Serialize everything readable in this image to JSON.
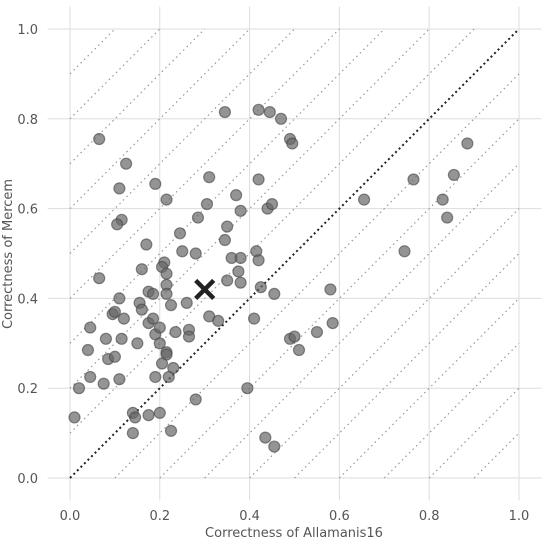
{
  "chart_data": {
    "type": "scatter",
    "xlabel": "Correctness of Allamanis16",
    "ylabel": "Correctness of Mercem",
    "xlim": [
      -0.05,
      1.05
    ],
    "ylim": [
      -0.05,
      1.05
    ],
    "xticks": [
      "0.0",
      "0.2",
      "0.4",
      "0.6",
      "0.8",
      "1.0"
    ],
    "yticks": [
      "0.0",
      "0.2",
      "0.4",
      "0.6",
      "0.8",
      "1.0"
    ],
    "grid": true,
    "diagonal_guides": true,
    "identity_line": true,
    "mean_marker": {
      "x": 0.3,
      "y": 0.42
    },
    "points": [
      [
        0.065,
        0.755
      ],
      [
        0.125,
        0.7
      ],
      [
        0.11,
        0.645
      ],
      [
        0.115,
        0.575
      ],
      [
        0.105,
        0.565
      ],
      [
        0.065,
        0.445
      ],
      [
        0.11,
        0.4
      ],
      [
        0.095,
        0.365
      ],
      [
        0.1,
        0.37
      ],
      [
        0.045,
        0.335
      ],
      [
        0.12,
        0.355
      ],
      [
        0.08,
        0.31
      ],
      [
        0.115,
        0.31
      ],
      [
        0.04,
        0.285
      ],
      [
        0.085,
        0.265
      ],
      [
        0.1,
        0.27
      ],
      [
        0.045,
        0.225
      ],
      [
        0.075,
        0.21
      ],
      [
        0.11,
        0.22
      ],
      [
        0.02,
        0.2
      ],
      [
        0.01,
        0.135
      ],
      [
        0.14,
        0.145
      ],
      [
        0.145,
        0.135
      ],
      [
        0.14,
        0.1
      ],
      [
        0.175,
        0.14
      ],
      [
        0.2,
        0.145
      ],
      [
        0.225,
        0.105
      ],
      [
        0.19,
        0.655
      ],
      [
        0.215,
        0.62
      ],
      [
        0.17,
        0.52
      ],
      [
        0.21,
        0.48
      ],
      [
        0.205,
        0.47
      ],
      [
        0.16,
        0.465
      ],
      [
        0.215,
        0.455
      ],
      [
        0.175,
        0.415
      ],
      [
        0.185,
        0.41
      ],
      [
        0.155,
        0.39
      ],
      [
        0.16,
        0.375
      ],
      [
        0.175,
        0.345
      ],
      [
        0.185,
        0.355
      ],
      [
        0.19,
        0.32
      ],
      [
        0.2,
        0.335
      ],
      [
        0.215,
        0.43
      ],
      [
        0.215,
        0.41
      ],
      [
        0.225,
        0.385
      ],
      [
        0.235,
        0.325
      ],
      [
        0.2,
        0.3
      ],
      [
        0.215,
        0.28
      ],
      [
        0.215,
        0.275
      ],
      [
        0.15,
        0.3
      ],
      [
        0.205,
        0.255
      ],
      [
        0.23,
        0.245
      ],
      [
        0.22,
        0.225
      ],
      [
        0.19,
        0.225
      ],
      [
        0.265,
        0.33
      ],
      [
        0.265,
        0.315
      ],
      [
        0.26,
        0.39
      ],
      [
        0.28,
        0.5
      ],
      [
        0.25,
        0.505
      ],
      [
        0.245,
        0.545
      ],
      [
        0.285,
        0.58
      ],
      [
        0.31,
        0.67
      ],
      [
        0.305,
        0.61
      ],
      [
        0.33,
        0.35
      ],
      [
        0.31,
        0.36
      ],
      [
        0.28,
        0.175
      ],
      [
        0.345,
        0.815
      ],
      [
        0.35,
        0.56
      ],
      [
        0.345,
        0.53
      ],
      [
        0.37,
        0.63
      ],
      [
        0.38,
        0.595
      ],
      [
        0.36,
        0.49
      ],
      [
        0.38,
        0.49
      ],
      [
        0.375,
        0.46
      ],
      [
        0.38,
        0.435
      ],
      [
        0.35,
        0.44
      ],
      [
        0.395,
        0.2
      ],
      [
        0.42,
        0.82
      ],
      [
        0.445,
        0.815
      ],
      [
        0.47,
        0.8
      ],
      [
        0.42,
        0.665
      ],
      [
        0.44,
        0.6
      ],
      [
        0.45,
        0.61
      ],
      [
        0.415,
        0.505
      ],
      [
        0.42,
        0.485
      ],
      [
        0.425,
        0.425
      ],
      [
        0.455,
        0.41
      ],
      [
        0.41,
        0.355
      ],
      [
        0.435,
        0.09
      ],
      [
        0.455,
        0.07
      ],
      [
        0.49,
        0.755
      ],
      [
        0.495,
        0.745
      ],
      [
        0.49,
        0.31
      ],
      [
        0.5,
        0.315
      ],
      [
        0.51,
        0.285
      ],
      [
        0.55,
        0.325
      ],
      [
        0.58,
        0.42
      ],
      [
        0.585,
        0.345
      ],
      [
        0.655,
        0.62
      ],
      [
        0.745,
        0.505
      ],
      [
        0.765,
        0.665
      ],
      [
        0.83,
        0.62
      ],
      [
        0.84,
        0.58
      ],
      [
        0.855,
        0.675
      ],
      [
        0.885,
        0.745
      ]
    ]
  }
}
